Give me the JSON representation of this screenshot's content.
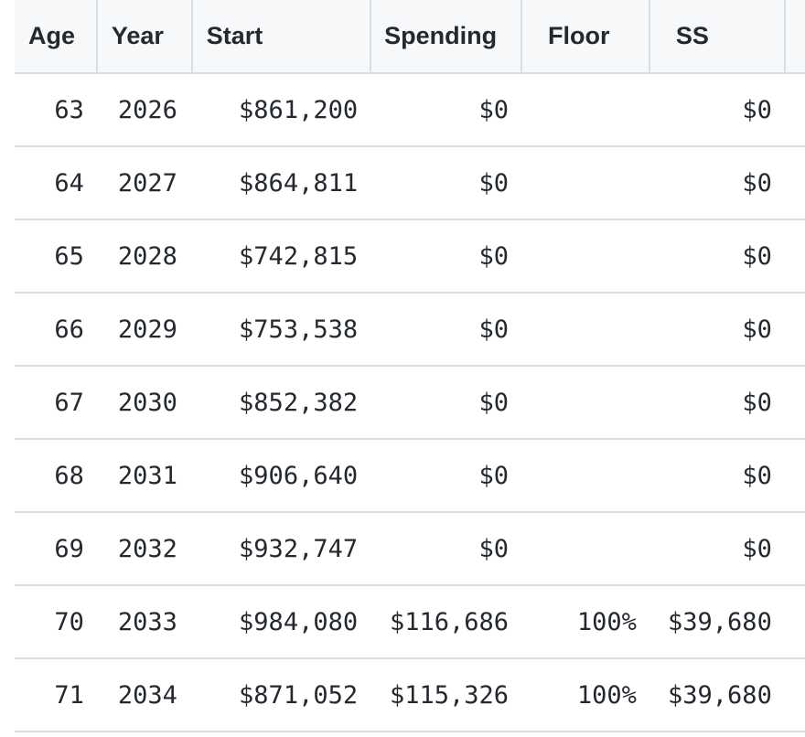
{
  "table": {
    "columns": [
      "Age",
      "Year",
      "Start",
      "Spending",
      "Floor",
      "SS"
    ],
    "rows": [
      {
        "age": "63",
        "year": "2026",
        "start": "$861,200",
        "spending": "$0",
        "floor": "",
        "ss": "$0"
      },
      {
        "age": "64",
        "year": "2027",
        "start": "$864,811",
        "spending": "$0",
        "floor": "",
        "ss": "$0"
      },
      {
        "age": "65",
        "year": "2028",
        "start": "$742,815",
        "spending": "$0",
        "floor": "",
        "ss": "$0"
      },
      {
        "age": "66",
        "year": "2029",
        "start": "$753,538",
        "spending": "$0",
        "floor": "",
        "ss": "$0"
      },
      {
        "age": "67",
        "year": "2030",
        "start": "$852,382",
        "spending": "$0",
        "floor": "",
        "ss": "$0"
      },
      {
        "age": "68",
        "year": "2031",
        "start": "$906,640",
        "spending": "$0",
        "floor": "",
        "ss": "$0"
      },
      {
        "age": "69",
        "year": "2032",
        "start": "$932,747",
        "spending": "$0",
        "floor": "",
        "ss": "$0"
      },
      {
        "age": "70",
        "year": "2033",
        "start": "$984,080",
        "spending": "$116,686",
        "floor": "100%",
        "ss": "$39,680"
      },
      {
        "age": "71",
        "year": "2034",
        "start": "$871,052",
        "spending": "$115,326",
        "floor": "100%",
        "ss": "$39,680"
      }
    ]
  }
}
